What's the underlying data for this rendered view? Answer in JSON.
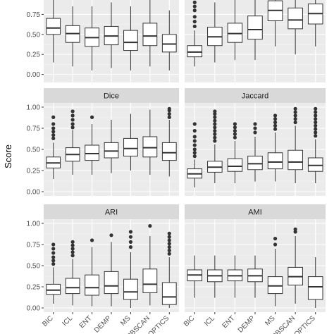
{
  "ylabel": "Score",
  "chart_data": [
    {
      "type": "boxplot",
      "title": "",
      "ylim": [
        -0.1,
        1.0
      ],
      "yticks": [
        "0.00",
        "0.25",
        "0.50",
        "0.75"
      ],
      "categories": [
        "BIC",
        "ICL",
        "ENT",
        "DEMP",
        "MS",
        "DBSCAN",
        "OPTICS"
      ],
      "boxes": [
        {
          "q1": 0.5,
          "med": 0.58,
          "q3": 0.7,
          "lo": 0.15,
          "hi": 0.98,
          "outliers": []
        },
        {
          "q1": 0.4,
          "med": 0.51,
          "q3": 0.61,
          "lo": 0.1,
          "hi": 0.85,
          "outliers": []
        },
        {
          "q1": 0.35,
          "med": 0.46,
          "q3": 0.58,
          "lo": 0.05,
          "hi": 0.85,
          "outliers": []
        },
        {
          "q1": 0.37,
          "med": 0.48,
          "q3": 0.6,
          "lo": 0.08,
          "hi": 0.9,
          "outliers": []
        },
        {
          "q1": 0.3,
          "med": 0.4,
          "q3": 0.55,
          "lo": 0.05,
          "hi": 0.85,
          "outliers": []
        },
        {
          "q1": 0.36,
          "med": 0.48,
          "q3": 0.64,
          "lo": 0.1,
          "hi": 0.98,
          "outliers": []
        },
        {
          "q1": 0.28,
          "med": 0.38,
          "q3": 0.5,
          "lo": 0.05,
          "hi": 0.8,
          "outliers": []
        }
      ]
    },
    {
      "type": "boxplot",
      "title": "",
      "ylim": [
        -0.1,
        1.0
      ],
      "yticks": [
        "0.00",
        "0.25",
        "0.50",
        "0.75"
      ],
      "categories": [
        "BIC",
        "ICL",
        "ENT",
        "DEMP",
        "MS",
        "DBSCAN",
        "OPTICS"
      ],
      "boxes": [
        {
          "q1": 0.22,
          "med": 0.28,
          "q3": 0.36,
          "lo": 0.1,
          "hi": 0.55,
          "outliers": [
            0.6,
            0.66,
            0.72,
            0.8,
            0.85,
            0.9,
            0.97
          ]
        },
        {
          "q1": 0.36,
          "med": 0.47,
          "q3": 0.59,
          "lo": 0.15,
          "hi": 0.9,
          "outliers": []
        },
        {
          "q1": 0.4,
          "med": 0.51,
          "q3": 0.64,
          "lo": 0.18,
          "hi": 0.95,
          "outliers": []
        },
        {
          "q1": 0.44,
          "med": 0.56,
          "q3": 0.73,
          "lo": 0.18,
          "hi": 0.98,
          "outliers": []
        },
        {
          "q1": 0.67,
          "med": 0.8,
          "q3": 0.92,
          "lo": 0.35,
          "hi": 1.0,
          "outliers": []
        },
        {
          "q1": 0.57,
          "med": 0.68,
          "q3": 0.83,
          "lo": 0.25,
          "hi": 1.0,
          "outliers": []
        },
        {
          "q1": 0.63,
          "med": 0.76,
          "q3": 0.88,
          "lo": 0.35,
          "hi": 1.0,
          "outliers": []
        }
      ]
    },
    {
      "type": "boxplot",
      "title": "Dice",
      "ylim": [
        -0.05,
        1.05
      ],
      "yticks": [
        "0.00",
        "0.25",
        "0.50",
        "0.75",
        "1.00"
      ],
      "categories": [
        "BIC",
        "ICL",
        "ENT",
        "DEMP",
        "MS",
        "DBSCAN",
        "OPTICS"
      ],
      "boxes": [
        {
          "q1": 0.28,
          "med": 0.34,
          "q3": 0.41,
          "lo": 0.15,
          "hi": 0.58,
          "outliers": [
            0.63,
            0.67,
            0.71,
            0.75,
            0.8,
            0.88
          ]
        },
        {
          "q1": 0.36,
          "med": 0.44,
          "q3": 0.52,
          "lo": 0.2,
          "hi": 0.73,
          "outliers": [
            0.76,
            0.8,
            0.85,
            0.9,
            0.95
          ]
        },
        {
          "q1": 0.37,
          "med": 0.45,
          "q3": 0.55,
          "lo": 0.2,
          "hi": 0.8,
          "outliers": [
            0.88
          ]
        },
        {
          "q1": 0.4,
          "med": 0.48,
          "q3": 0.58,
          "lo": 0.22,
          "hi": 0.85,
          "outliers": []
        },
        {
          "q1": 0.42,
          "med": 0.51,
          "q3": 0.63,
          "lo": 0.25,
          "hi": 0.92,
          "outliers": []
        },
        {
          "q1": 0.41,
          "med": 0.52,
          "q3": 0.65,
          "lo": 0.2,
          "hi": 0.97,
          "outliers": []
        },
        {
          "q1": 0.37,
          "med": 0.46,
          "q3": 0.58,
          "lo": 0.18,
          "hi": 0.85,
          "outliers": [
            0.88,
            0.92,
            0.96,
            0.98
          ]
        }
      ]
    },
    {
      "type": "boxplot",
      "title": "Jaccard",
      "ylim": [
        -0.05,
        1.05
      ],
      "yticks": [
        "0.00",
        "0.25",
        "0.50",
        "0.75",
        "1.00"
      ],
      "categories": [
        "BIC",
        "ICL",
        "ENT",
        "DEMP",
        "MS",
        "DBSCAN",
        "OPTICS"
      ],
      "boxes": [
        {
          "q1": 0.16,
          "med": 0.21,
          "q3": 0.27,
          "lo": 0.05,
          "hi": 0.38,
          "outliers": [
            0.42,
            0.46,
            0.5,
            0.55,
            0.6,
            0.65,
            0.72,
            0.8
          ]
        },
        {
          "q1": 0.23,
          "med": 0.29,
          "q3": 0.36,
          "lo": 0.1,
          "hi": 0.56,
          "outliers": [
            0.6,
            0.64,
            0.68,
            0.72,
            0.76,
            0.8,
            0.84,
            0.88,
            0.92,
            0.95
          ]
        },
        {
          "q1": 0.24,
          "med": 0.3,
          "q3": 0.39,
          "lo": 0.1,
          "hi": 0.6,
          "outliers": [
            0.64,
            0.68,
            0.72,
            0.76,
            0.8
          ]
        },
        {
          "q1": 0.26,
          "med": 0.33,
          "q3": 0.42,
          "lo": 0.12,
          "hi": 0.65,
          "outliers": [
            0.7,
            0.75,
            0.8
          ]
        },
        {
          "q1": 0.27,
          "med": 0.35,
          "q3": 0.46,
          "lo": 0.12,
          "hi": 0.7,
          "outliers": [
            0.74,
            0.78,
            0.82,
            0.86,
            0.9
          ]
        },
        {
          "q1": 0.26,
          "med": 0.35,
          "q3": 0.49,
          "lo": 0.1,
          "hi": 0.78,
          "outliers": [
            0.82,
            0.86,
            0.9,
            0.94,
            0.98
          ]
        },
        {
          "q1": 0.24,
          "med": 0.31,
          "q3": 0.4,
          "lo": 0.1,
          "hi": 0.62,
          "outliers": [
            0.66,
            0.7,
            0.74,
            0.78,
            0.82,
            0.86,
            0.9,
            0.94,
            0.98
          ]
        }
      ]
    },
    {
      "type": "boxplot",
      "title": "ARI",
      "ylim": [
        -0.05,
        1.05
      ],
      "yticks": [
        "0.00",
        "0.25",
        "0.50",
        "0.75",
        "1.00"
      ],
      "categories": [
        "BIC",
        "ICL",
        "ENT",
        "DEMP",
        "MS",
        "DBSCAN",
        "OPTICS"
      ],
      "boxes": [
        {
          "q1": 0.16,
          "med": 0.21,
          "q3": 0.28,
          "lo": 0.05,
          "hi": 0.48,
          "outliers": [
            0.52,
            0.56,
            0.6,
            0.65,
            0.7,
            0.75
          ]
        },
        {
          "q1": 0.17,
          "med": 0.24,
          "q3": 0.35,
          "lo": 0.03,
          "hi": 0.58,
          "outliers": [
            0.62,
            0.66,
            0.7,
            0.74,
            0.78
          ]
        },
        {
          "q1": 0.15,
          "med": 0.24,
          "q3": 0.39,
          "lo": 0.02,
          "hi": 0.72,
          "outliers": [
            0.8
          ]
        },
        {
          "q1": 0.17,
          "med": 0.26,
          "q3": 0.43,
          "lo": 0.02,
          "hi": 0.78,
          "outliers": [
            0.86
          ]
        },
        {
          "q1": 0.1,
          "med": 0.19,
          "q3": 0.34,
          "lo": 0.0,
          "hi": 0.66,
          "outliers": [
            0.72,
            0.78,
            0.84,
            0.9
          ]
        },
        {
          "q1": 0.18,
          "med": 0.28,
          "q3": 0.46,
          "lo": 0.03,
          "hi": 0.85,
          "outliers": [
            0.97
          ]
        },
        {
          "q1": 0.04,
          "med": 0.13,
          "q3": 0.3,
          "lo": 0.0,
          "hi": 0.6,
          "outliers": [
            0.64,
            0.68,
            0.72,
            0.76,
            0.8,
            0.84,
            0.88
          ]
        }
      ]
    },
    {
      "type": "boxplot",
      "title": "AMI",
      "ylim": [
        -0.05,
        1.05
      ],
      "yticks": [
        "0.00",
        "0.25",
        "0.50",
        "0.75",
        "1.00"
      ],
      "categories": [
        "BIC",
        "ICL",
        "ENT",
        "DEMP",
        "MS",
        "DBSCAN",
        "OPTICS"
      ],
      "boxes": [
        {
          "q1": 0.32,
          "med": 0.39,
          "q3": 0.45,
          "lo": 0.12,
          "hi": 0.62,
          "outliers": []
        },
        {
          "q1": 0.31,
          "med": 0.38,
          "q3": 0.45,
          "lo": 0.12,
          "hi": 0.62,
          "outliers": []
        },
        {
          "q1": 0.32,
          "med": 0.38,
          "q3": 0.45,
          "lo": 0.12,
          "hi": 0.62,
          "outliers": []
        },
        {
          "q1": 0.31,
          "med": 0.38,
          "q3": 0.46,
          "lo": 0.12,
          "hi": 0.62,
          "outliers": []
        },
        {
          "q1": 0.17,
          "med": 0.26,
          "q3": 0.37,
          "lo": 0.02,
          "hi": 0.7,
          "outliers": [
            0.75,
            0.82
          ]
        },
        {
          "q1": 0.27,
          "med": 0.37,
          "q3": 0.48,
          "lo": 0.05,
          "hi": 0.85,
          "outliers": [
            0.9,
            0.93
          ]
        },
        {
          "q1": 0.1,
          "med": 0.25,
          "q3": 0.37,
          "lo": 0.0,
          "hi": 0.6,
          "outliers": []
        }
      ]
    }
  ]
}
